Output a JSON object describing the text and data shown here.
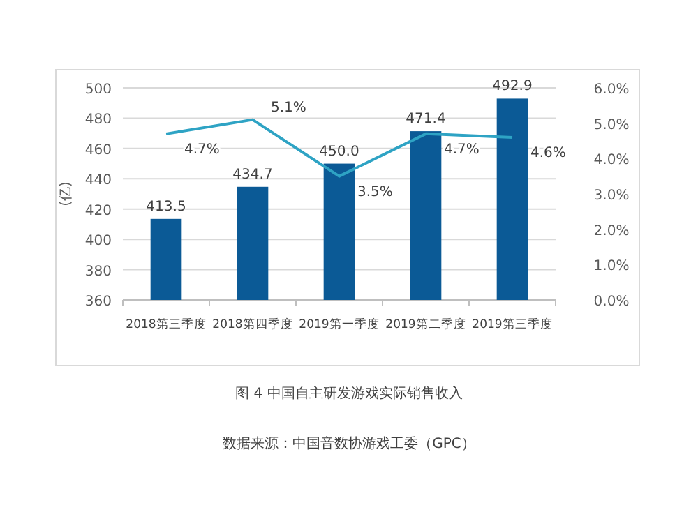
{
  "chart_data": {
    "type": "bar",
    "ylabel": "(亿)",
    "categories": [
      "2018第三季度",
      "2018第四季度",
      "2019第一季度",
      "2019第二季度",
      "2019第三季度"
    ],
    "series": [
      {
        "color": "#0b5a96",
        "values": [
          413.5,
          434.7,
          450.0,
          471.4,
          492.9
        ],
        "value_labels": [
          "413.5",
          "434.7",
          "450.0",
          "471.4",
          "492.9"
        ]
      },
      {
        "type": "line",
        "axis": "y2",
        "color": "#2ea3c4",
        "values": [
          4.7,
          5.1,
          3.5,
          4.7,
          4.6
        ],
        "value_labels": [
          "4.7%",
          "5.1%",
          "3.5%",
          "4.7%",
          "4.6%"
        ]
      }
    ],
    "ylim": [
      360,
      500
    ],
    "yticks": [
      360,
      380,
      400,
      420,
      440,
      460,
      480,
      500
    ],
    "y2lim": [
      0,
      6
    ],
    "y2ticks": [
      {
        "value": 0,
        "label": "0.0%"
      },
      {
        "value": 1,
        "label": "1.0%"
      },
      {
        "value": 2,
        "label": "2.0%"
      },
      {
        "value": 3,
        "label": "3.0%"
      },
      {
        "value": 4,
        "label": "4.0%"
      },
      {
        "value": 5,
        "label": "5.0%"
      },
      {
        "value": 6,
        "label": "6.0%"
      }
    ],
    "grid": "y",
    "annotations": [
      "图 4  中国自主研发游戏实际销售收入",
      "数据来源：中国音数协游戏工委（GPC）"
    ]
  }
}
